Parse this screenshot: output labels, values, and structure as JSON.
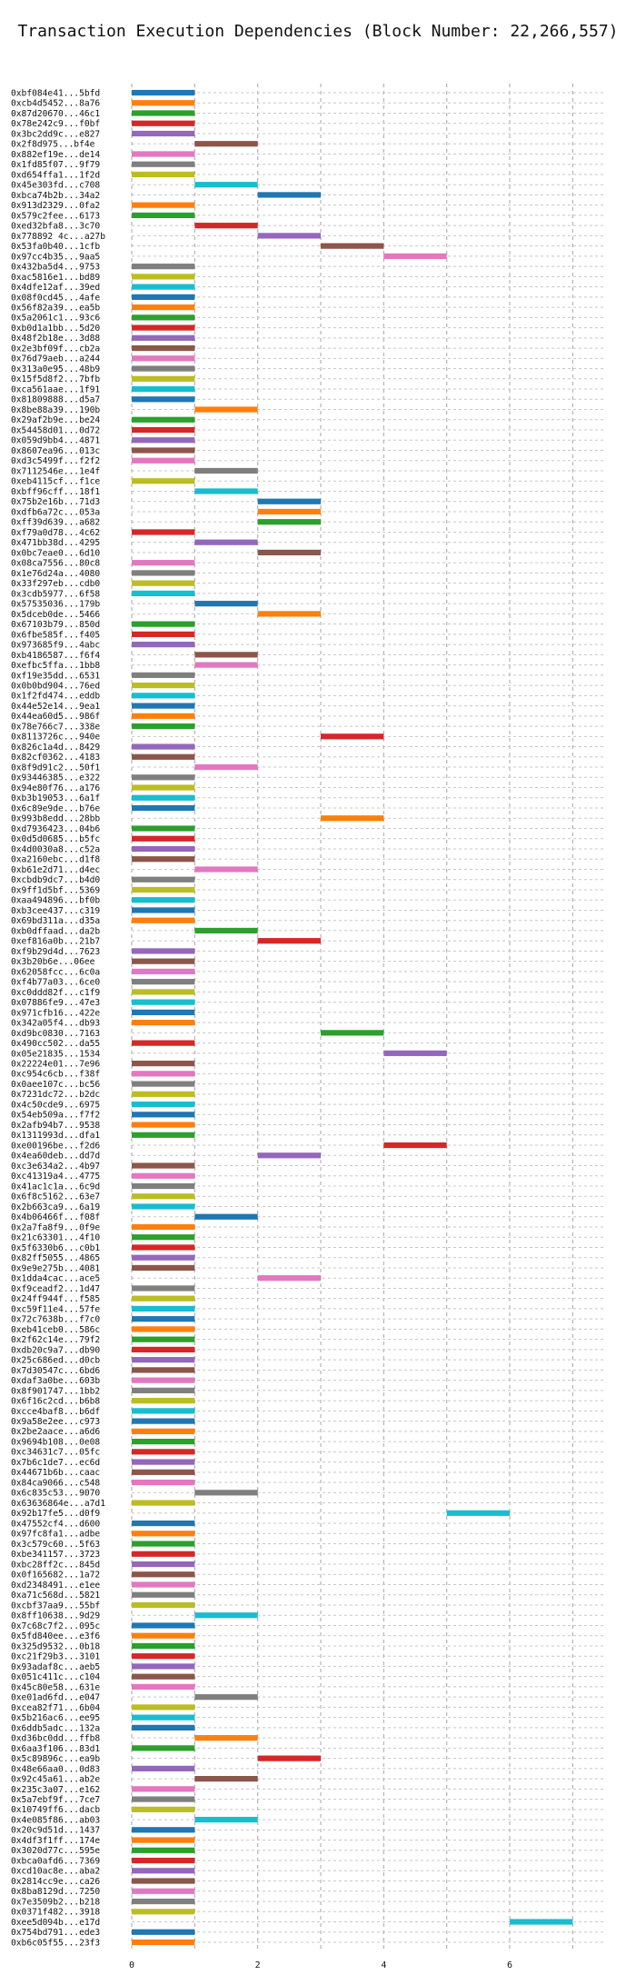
{
  "chart_data": {
    "type": "bar",
    "title": "Transaction Execution Dependencies (Block Number: 22,266,557)",
    "xlabel": "",
    "ylabel": "",
    "xlim": [
      0,
      7.5
    ],
    "xticks": [
      0,
      2,
      4,
      6
    ],
    "grid": "dashed",
    "palette": [
      "#1f77b4",
      "#ff7f0e",
      "#2ca02c",
      "#d62728",
      "#9467bd",
      "#8c564b",
      "#e377c2",
      "#7f7f7f",
      "#bcbd22",
      "#17becf"
    ],
    "bars": [
      {
        "label": "0xbf084e41...5bfd",
        "start": 0,
        "end": 1
      },
      {
        "label": "0xcb4d5452...8a76",
        "start": 0,
        "end": 1
      },
      {
        "label": "0x87d20670...46c1",
        "start": 0,
        "end": 1
      },
      {
        "label": "0x78e242c9...f0bf",
        "start": 0,
        "end": 1
      },
      {
        "label": "0x3bc2dd9c...e827",
        "start": 0,
        "end": 1
      },
      {
        "label": "0x2f8d975...bf4e",
        "start": 1,
        "end": 2
      },
      {
        "label": "0x882ef19e...de14",
        "start": 0,
        "end": 1
      },
      {
        "label": "0x1fd85f07...9f79",
        "start": 0,
        "end": 1
      },
      {
        "label": "0xd654ffa1...1f2d",
        "start": 0,
        "end": 1
      },
      {
        "label": "0x45e303fd...c708",
        "start": 1,
        "end": 2
      },
      {
        "label": "0xbca74b2b...34a2",
        "start": 2,
        "end": 3
      },
      {
        "label": "0x913d2329...0fa2",
        "start": 0,
        "end": 1
      },
      {
        "label": "0x579c2fee...6173",
        "start": 0,
        "end": 1
      },
      {
        "label": "0xed32bfa8...3c70",
        "start": 1,
        "end": 2
      },
      {
        "label": "0x778892 4c...a27b",
        "start": 2,
        "end": 3
      },
      {
        "label": "0x53fa0b40...1cfb",
        "start": 3,
        "end": 4
      },
      {
        "label": "0x97cc4b35...9aa5",
        "start": 4,
        "end": 5
      },
      {
        "label": "0x432ba5d4...9753",
        "start": 0,
        "end": 1
      },
      {
        "label": "0xac5816e1...bd89",
        "start": 0,
        "end": 1
      },
      {
        "label": "0x4dfe12af...39ed",
        "start": 0,
        "end": 1
      },
      {
        "label": "0x08f0cd45...4afe",
        "start": 0,
        "end": 1
      },
      {
        "label": "0x56f82a39...ea5b",
        "start": 0,
        "end": 1
      },
      {
        "label": "0x5a2061c1...93c6",
        "start": 0,
        "end": 1
      },
      {
        "label": "0xb0d1a1bb...5d20",
        "start": 0,
        "end": 1
      },
      {
        "label": "0x48f2b18e...3d88",
        "start": 0,
        "end": 1
      },
      {
        "label": "0x2e3bf09f...cb2a",
        "start": 0,
        "end": 1
      },
      {
        "label": "0x76d79aeb...a244",
        "start": 0,
        "end": 1
      },
      {
        "label": "0x313a0e95...48b9",
        "start": 0,
        "end": 1
      },
      {
        "label": "0x15f5d8f2...7bfb",
        "start": 0,
        "end": 1
      },
      {
        "label": "0xca561aae...1f91",
        "start": 0,
        "end": 1
      },
      {
        "label": "0x81809888...d5a7",
        "start": 0,
        "end": 1
      },
      {
        "label": "0x8be88a39...190b",
        "start": 1,
        "end": 2
      },
      {
        "label": "0x29af2b9e...be24",
        "start": 0,
        "end": 1
      },
      {
        "label": "0x54458d01...0d72",
        "start": 0,
        "end": 1
      },
      {
        "label": "0x059d9bb4...4871",
        "start": 0,
        "end": 1
      },
      {
        "label": "0x8607ea96...013c",
        "start": 0,
        "end": 1
      },
      {
        "label": "0xd3c5499f...f2f2",
        "start": 0,
        "end": 1
      },
      {
        "label": "0x7112546e...1e4f",
        "start": 1,
        "end": 2
      },
      {
        "label": "0xeb4115cf...f1ce",
        "start": 0,
        "end": 1
      },
      {
        "label": "0xbff96cff...18f1",
        "start": 1,
        "end": 2
      },
      {
        "label": "0x75b2e16b...71d3",
        "start": 2,
        "end": 3
      },
      {
        "label": "0xdfb6a72c...053a",
        "start": 2,
        "end": 3
      },
      {
        "label": "0xff39d639...a682",
        "start": 2,
        "end": 3
      },
      {
        "label": "0xf79a0d78...4c62",
        "start": 0,
        "end": 1
      },
      {
        "label": "0x471bb38d...4295",
        "start": 1,
        "end": 2
      },
      {
        "label": "0x0bc7eae0...6d10",
        "start": 2,
        "end": 3
      },
      {
        "label": "0x08ca7556...80c8",
        "start": 0,
        "end": 1
      },
      {
        "label": "0x1e76d24a...4080",
        "start": 0,
        "end": 1
      },
      {
        "label": "0x33f297eb...cdb0",
        "start": 0,
        "end": 1
      },
      {
        "label": "0x3cdb5977...6f58",
        "start": 0,
        "end": 1
      },
      {
        "label": "0x57535036...179b",
        "start": 1,
        "end": 2
      },
      {
        "label": "0x5dceb0de...5466",
        "start": 2,
        "end": 3
      },
      {
        "label": "0x67103b79...850d",
        "start": 0,
        "end": 1
      },
      {
        "label": "0x6fbe585f...f405",
        "start": 0,
        "end": 1
      },
      {
        "label": "0x973685f9...4abc",
        "start": 0,
        "end": 1
      },
      {
        "label": "0xb4186587...f6f4",
        "start": 1,
        "end": 2
      },
      {
        "label": "0xefbc5ffa...1bb8",
        "start": 1,
        "end": 2
      },
      {
        "label": "0xf19e35dd...6531",
        "start": 0,
        "end": 1
      },
      {
        "label": "0x0b0bd904...76ed",
        "start": 0,
        "end": 1
      },
      {
        "label": "0x1f2fd474...eddb",
        "start": 0,
        "end": 1
      },
      {
        "label": "0x44e52e14...9ea1",
        "start": 0,
        "end": 1
      },
      {
        "label": "0x44ea60d5...986f",
        "start": 0,
        "end": 1
      },
      {
        "label": "0x78e766c7...338e",
        "start": 0,
        "end": 1
      },
      {
        "label": "0x8113726c...940e",
        "start": 3,
        "end": 4
      },
      {
        "label": "0x826c1a4d...8429",
        "start": 0,
        "end": 1
      },
      {
        "label": "0x82cf0362...4183",
        "start": 0,
        "end": 1
      },
      {
        "label": "0x8f9d91c2...50f1",
        "start": 1,
        "end": 2
      },
      {
        "label": "0x93446385...e322",
        "start": 0,
        "end": 1
      },
      {
        "label": "0x94e80f76...a176",
        "start": 0,
        "end": 1
      },
      {
        "label": "0xb3b19053...6a1f",
        "start": 0,
        "end": 1
      },
      {
        "label": "0x6c89e9de...b76e",
        "start": 0,
        "end": 1
      },
      {
        "label": "0x993b8edd...28bb",
        "start": 3,
        "end": 4
      },
      {
        "label": "0xd7936423...04b6",
        "start": 0,
        "end": 1
      },
      {
        "label": "0x0d5d0685...b5fc",
        "start": 0,
        "end": 1
      },
      {
        "label": "0x4d0030a8...c52a",
        "start": 0,
        "end": 1
      },
      {
        "label": "0xa2160ebc...d1f8",
        "start": 0,
        "end": 1
      },
      {
        "label": "0xb61e2d71...d4ec",
        "start": 1,
        "end": 2
      },
      {
        "label": "0xcbdb9dc7...b4d0",
        "start": 0,
        "end": 1
      },
      {
        "label": "0x9ff1d5bf...5369",
        "start": 0,
        "end": 1
      },
      {
        "label": "0xaa494896...bf0b",
        "start": 0,
        "end": 1
      },
      {
        "label": "0xb3cee437...c319",
        "start": 0,
        "end": 1
      },
      {
        "label": "0x69bd311a...d35a",
        "start": 0,
        "end": 1
      },
      {
        "label": "0xb0dffaad...da2b",
        "start": 1,
        "end": 2
      },
      {
        "label": "0xef816a0b...21b7",
        "start": 2,
        "end": 3
      },
      {
        "label": "0xf9b29d4d...7623",
        "start": 0,
        "end": 1
      },
      {
        "label": "0x3b20b6e...06ee",
        "start": 0,
        "end": 1
      },
      {
        "label": "0x62058fcc...6c0a",
        "start": 0,
        "end": 1
      },
      {
        "label": "0xf4b77a03...6ce0",
        "start": 0,
        "end": 1
      },
      {
        "label": "0xc0ddd82f...c1f9",
        "start": 0,
        "end": 1
      },
      {
        "label": "0x07886fe9...47e3",
        "start": 0,
        "end": 1
      },
      {
        "label": "0x971cfb16...422e",
        "start": 0,
        "end": 1
      },
      {
        "label": "0x342a05f4...db93",
        "start": 0,
        "end": 1
      },
      {
        "label": "0xd9bc0830...7163",
        "start": 3,
        "end": 4
      },
      {
        "label": "0x490cc502...da55",
        "start": 0,
        "end": 1
      },
      {
        "label": "0x05e21835...1534",
        "start": 4,
        "end": 5
      },
      {
        "label": "0x22224e01...7e96",
        "start": 0,
        "end": 1
      },
      {
        "label": "0xc954c6cb...f38f",
        "start": 0,
        "end": 1
      },
      {
        "label": "0x0aee107c...bc56",
        "start": 0,
        "end": 1
      },
      {
        "label": "0x7231dc72...b2dc",
        "start": 0,
        "end": 1
      },
      {
        "label": "0x4c50cde9...6975",
        "start": 0,
        "end": 1
      },
      {
        "label": "0x54eb509a...f7f2",
        "start": 0,
        "end": 1
      },
      {
        "label": "0x2afb94b7...9538",
        "start": 0,
        "end": 1
      },
      {
        "label": "0x1311993d...dfa1",
        "start": 0,
        "end": 1
      },
      {
        "label": "0xe00196be...f2d6",
        "start": 4,
        "end": 5
      },
      {
        "label": "0x4ea60deb...dd7d",
        "start": 2,
        "end": 3
      },
      {
        "label": "0xc3e634a2...4b97",
        "start": 0,
        "end": 1
      },
      {
        "label": "0xc41319a4...4775",
        "start": 0,
        "end": 1
      },
      {
        "label": "0x41ac1c1a...6c9d",
        "start": 0,
        "end": 1
      },
      {
        "label": "0x6f8c5162...63e7",
        "start": 0,
        "end": 1
      },
      {
        "label": "0x2b663ca9...6a19",
        "start": 0,
        "end": 1
      },
      {
        "label": "0x4b06466f...f08f",
        "start": 1,
        "end": 2
      },
      {
        "label": "0x2a7fa8f9...0f9e",
        "start": 0,
        "end": 1
      },
      {
        "label": "0x21c63301...4f10",
        "start": 0,
        "end": 1
      },
      {
        "label": "0x5f6330b6...c0b1",
        "start": 0,
        "end": 1
      },
      {
        "label": "0x82ff5055...4865",
        "start": 0,
        "end": 1
      },
      {
        "label": "0x9e9e275b...4081",
        "start": 0,
        "end": 1
      },
      {
        "label": "0x1dda4cac...ace5",
        "start": 2,
        "end": 3
      },
      {
        "label": "0xf9ceadf2...1d47",
        "start": 0,
        "end": 1
      },
      {
        "label": "0x24ff944f...f585",
        "start": 0,
        "end": 1
      },
      {
        "label": "0xc59f11e4...57fe",
        "start": 0,
        "end": 1
      },
      {
        "label": "0x72c7638b...f7c0",
        "start": 0,
        "end": 1
      },
      {
        "label": "0xeb41ceb0...586c",
        "start": 0,
        "end": 1
      },
      {
        "label": "0x2f62c14e...79f2",
        "start": 0,
        "end": 1
      },
      {
        "label": "0xdb20c9a7...db90",
        "start": 0,
        "end": 1
      },
      {
        "label": "0x25c686ed...d0cb",
        "start": 0,
        "end": 1
      },
      {
        "label": "0x7d30547c...6bd6",
        "start": 0,
        "end": 1
      },
      {
        "label": "0xdaf3a0be...603b",
        "start": 0,
        "end": 1
      },
      {
        "label": "0x8f901747...1bb2",
        "start": 0,
        "end": 1
      },
      {
        "label": "0x6f16c2cd...b6b8",
        "start": 0,
        "end": 1
      },
      {
        "label": "0xcce4baf8...b6df",
        "start": 0,
        "end": 1
      },
      {
        "label": "0x9a58e2ee...c973",
        "start": 0,
        "end": 1
      },
      {
        "label": "0x2be2aace...a6d6",
        "start": 0,
        "end": 1
      },
      {
        "label": "0x9694b108...0e08",
        "start": 0,
        "end": 1
      },
      {
        "label": "0xc34631c7...05fc",
        "start": 0,
        "end": 1
      },
      {
        "label": "0x7b6c1de7...ec6d",
        "start": 0,
        "end": 1
      },
      {
        "label": "0x44671b6b...caac",
        "start": 0,
        "end": 1
      },
      {
        "label": "0x84ca9066...c548",
        "start": 0,
        "end": 1
      },
      {
        "label": "0x6c835c53...9070",
        "start": 1,
        "end": 2
      },
      {
        "label": "0x63636864e...a7d1",
        "start": 0,
        "end": 1
      },
      {
        "label": "0x92b17fe5...d0f9",
        "start": 5,
        "end": 6
      },
      {
        "label": "0x47552cf4...d600",
        "start": 0,
        "end": 1
      },
      {
        "label": "0x97fc8fa1...adbe",
        "start": 0,
        "end": 1
      },
      {
        "label": "0x3c579c60...5f63",
        "start": 0,
        "end": 1
      },
      {
        "label": "0xbe341157...3723",
        "start": 0,
        "end": 1
      },
      {
        "label": "0xbc28ff2c...845d",
        "start": 0,
        "end": 1
      },
      {
        "label": "0x0f165682...1a72",
        "start": 0,
        "end": 1
      },
      {
        "label": "0xd2348491...e1ee",
        "start": 0,
        "end": 1
      },
      {
        "label": "0xa71c568d...5821",
        "start": 0,
        "end": 1
      },
      {
        "label": "0xcbf37aa9...55bf",
        "start": 0,
        "end": 1
      },
      {
        "label": "0x8ff10638...9d29",
        "start": 1,
        "end": 2
      },
      {
        "label": "0x7c68c7f2...095c",
        "start": 0,
        "end": 1
      },
      {
        "label": "0x5fd840ee...e3f6",
        "start": 0,
        "end": 1
      },
      {
        "label": "0x325d9532...0b18",
        "start": 0,
        "end": 1
      },
      {
        "label": "0xc21f29b3...3101",
        "start": 0,
        "end": 1
      },
      {
        "label": "0x93adaf8c...aeb5",
        "start": 0,
        "end": 1
      },
      {
        "label": "0x051c411c...c104",
        "start": 0,
        "end": 1
      },
      {
        "label": "0x45c80e58...631e",
        "start": 0,
        "end": 1
      },
      {
        "label": "0xe01ad6fd...e047",
        "start": 1,
        "end": 2
      },
      {
        "label": "0xcea82f71...6b04",
        "start": 0,
        "end": 1
      },
      {
        "label": "0x5b216ac6...ee95",
        "start": 0,
        "end": 1
      },
      {
        "label": "0x6ddb5adc...132a",
        "start": 0,
        "end": 1
      },
      {
        "label": "0xd36bc0dd...ffb8",
        "start": 1,
        "end": 2
      },
      {
        "label": "0x6aa3f106...83d1",
        "start": 0,
        "end": 1
      },
      {
        "label": "0x5c89896c...ea9b",
        "start": 2,
        "end": 3
      },
      {
        "label": "0x48e66aa0...0d83",
        "start": 0,
        "end": 1
      },
      {
        "label": "0x92c45a61...ab2e",
        "start": 1,
        "end": 2
      },
      {
        "label": "0x235c3a07...e162",
        "start": 0,
        "end": 1
      },
      {
        "label": "0x5a7ebf9f...7ce7",
        "start": 0,
        "end": 1
      },
      {
        "label": "0x10749ff6...dacb",
        "start": 0,
        "end": 1
      },
      {
        "label": "0x4e085f86...ab03",
        "start": 1,
        "end": 2
      },
      {
        "label": "0x20c9d51d...1437",
        "start": 0,
        "end": 1
      },
      {
        "label": "0x4df3f1ff...174e",
        "start": 0,
        "end": 1
      },
      {
        "label": "0x3020d77c...595e",
        "start": 0,
        "end": 1
      },
      {
        "label": "0xbca0afd6...7369",
        "start": 0,
        "end": 1
      },
      {
        "label": "0xcd10ac8e...aba2",
        "start": 0,
        "end": 1
      },
      {
        "label": "0x2814cc9e...ca26",
        "start": 0,
        "end": 1
      },
      {
        "label": "0x8ba8129d...7250",
        "start": 0,
        "end": 1
      },
      {
        "label": "0x7e3509b2...b218",
        "start": 0,
        "end": 1
      },
      {
        "label": "0x0371f482...3918",
        "start": 0,
        "end": 1
      },
      {
        "label": "0xee5d094b...e17d",
        "start": 6,
        "end": 7
      },
      {
        "label": "0x754bd791...ede3",
        "start": 0,
        "end": 1
      },
      {
        "label": "0xb6c05f55...23f3",
        "start": 0,
        "end": 1
      }
    ]
  }
}
